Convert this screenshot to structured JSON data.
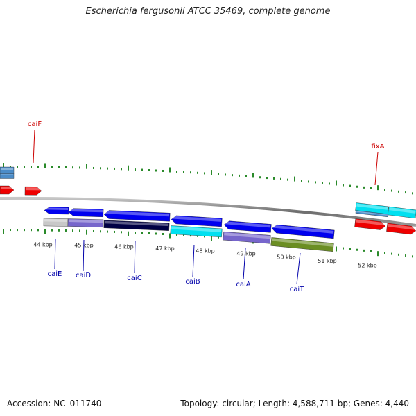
{
  "title": "Escherichia fergusonii ATCC 35469, complete genome",
  "footer": {
    "accession_label": "Accession:",
    "accession": "NC_011740",
    "topology_label": "Topology:",
    "topology": "circular",
    "length_label": "Length:",
    "length": "4,588,711 bp",
    "genes_label": "Genes:",
    "genes": "4,440"
  },
  "colors": {
    "backbone": "#888888",
    "ticks": "#2a8a2a",
    "label_forward": "#cc0000",
    "label_reverse": "#0000aa",
    "feature_blue": "#0000ee",
    "feature_red": "#ee0000",
    "feature_cyan": "#00e0f0",
    "feature_purple": "#7766cc",
    "feature_navy": "#000044",
    "feature_olive": "#6b8e23",
    "feature_grey": "#c8c8c8",
    "feature_steel": "#4b8cc8"
  },
  "scale_labels": [
    "44 kbp",
    "45 kbp",
    "46 kbp",
    "47 kbp",
    "48 kbp",
    "49 kbp",
    "50 kbp",
    "51 kbp",
    "52 kbp"
  ],
  "gene_labels": {
    "forward": [
      "caiF",
      "fixA"
    ],
    "reverse": [
      "caiE",
      "caiD",
      "caiC",
      "caiB",
      "caiA",
      "caiT"
    ]
  }
}
